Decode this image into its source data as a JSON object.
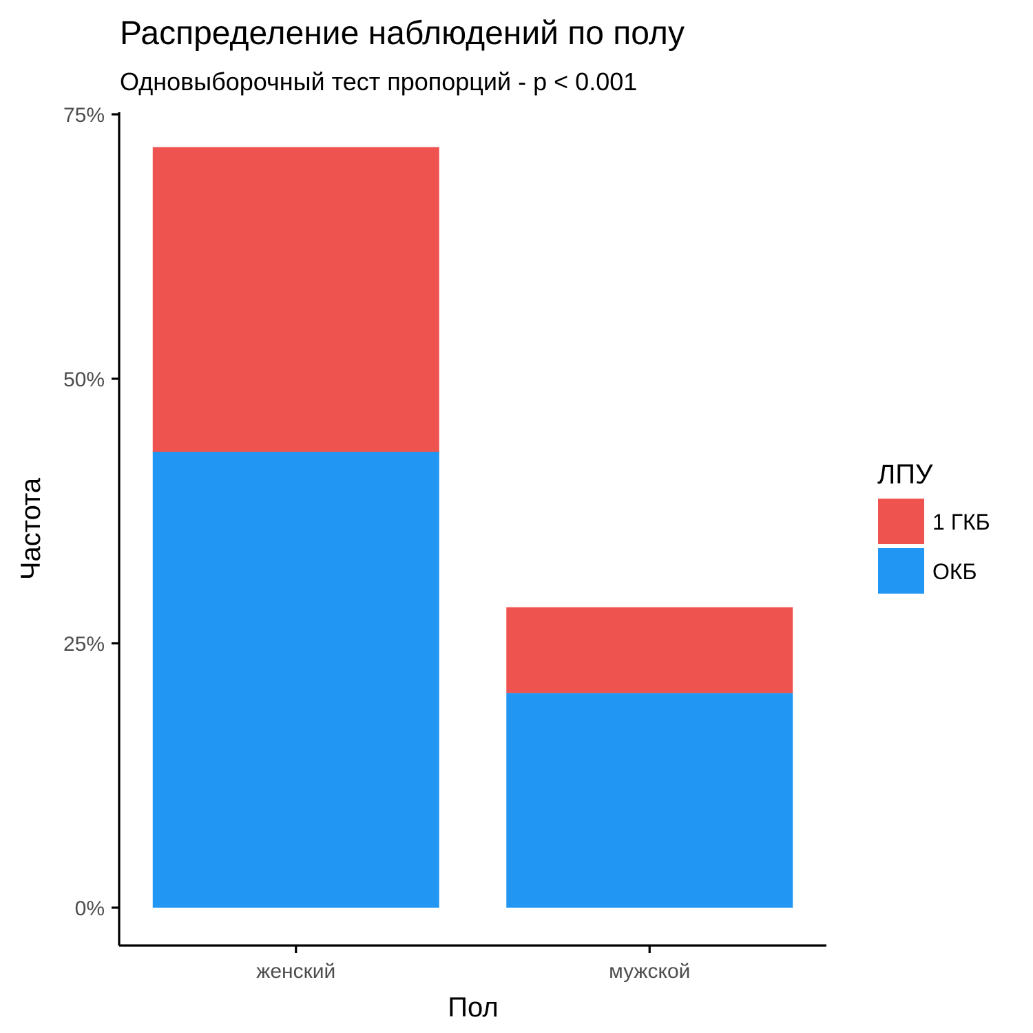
{
  "chart_data": {
    "type": "bar",
    "stacked": true,
    "title": "Распределение наблюдений по полу",
    "subtitle": "Одновыборочный тест пропорций - p < 0.001",
    "xlabel": "Пол",
    "ylabel": "Частота",
    "categories": [
      "женский",
      "мужской"
    ],
    "series": [
      {
        "name": "ОКБ",
        "color": "#2196F3",
        "values": [
          43.1,
          20.3
        ]
      },
      {
        "name": "1 ГКБ",
        "color": "#EF5350",
        "values": [
          28.8,
          8.1
        ]
      }
    ],
    "ylim": [
      0,
      75
    ],
    "yticks": [
      {
        "value": 0,
        "label": "0%"
      },
      {
        "value": 25,
        "label": "25%"
      },
      {
        "value": 50,
        "label": "50%"
      },
      {
        "value": 75,
        "label": "75%"
      }
    ],
    "legend": {
      "title": "ЛПУ",
      "position": "right",
      "entries": [
        {
          "label": "1 ГКБ",
          "color": "#EF5350"
        },
        {
          "label": "ОКБ",
          "color": "#2196F3"
        }
      ]
    },
    "grid": false
  }
}
